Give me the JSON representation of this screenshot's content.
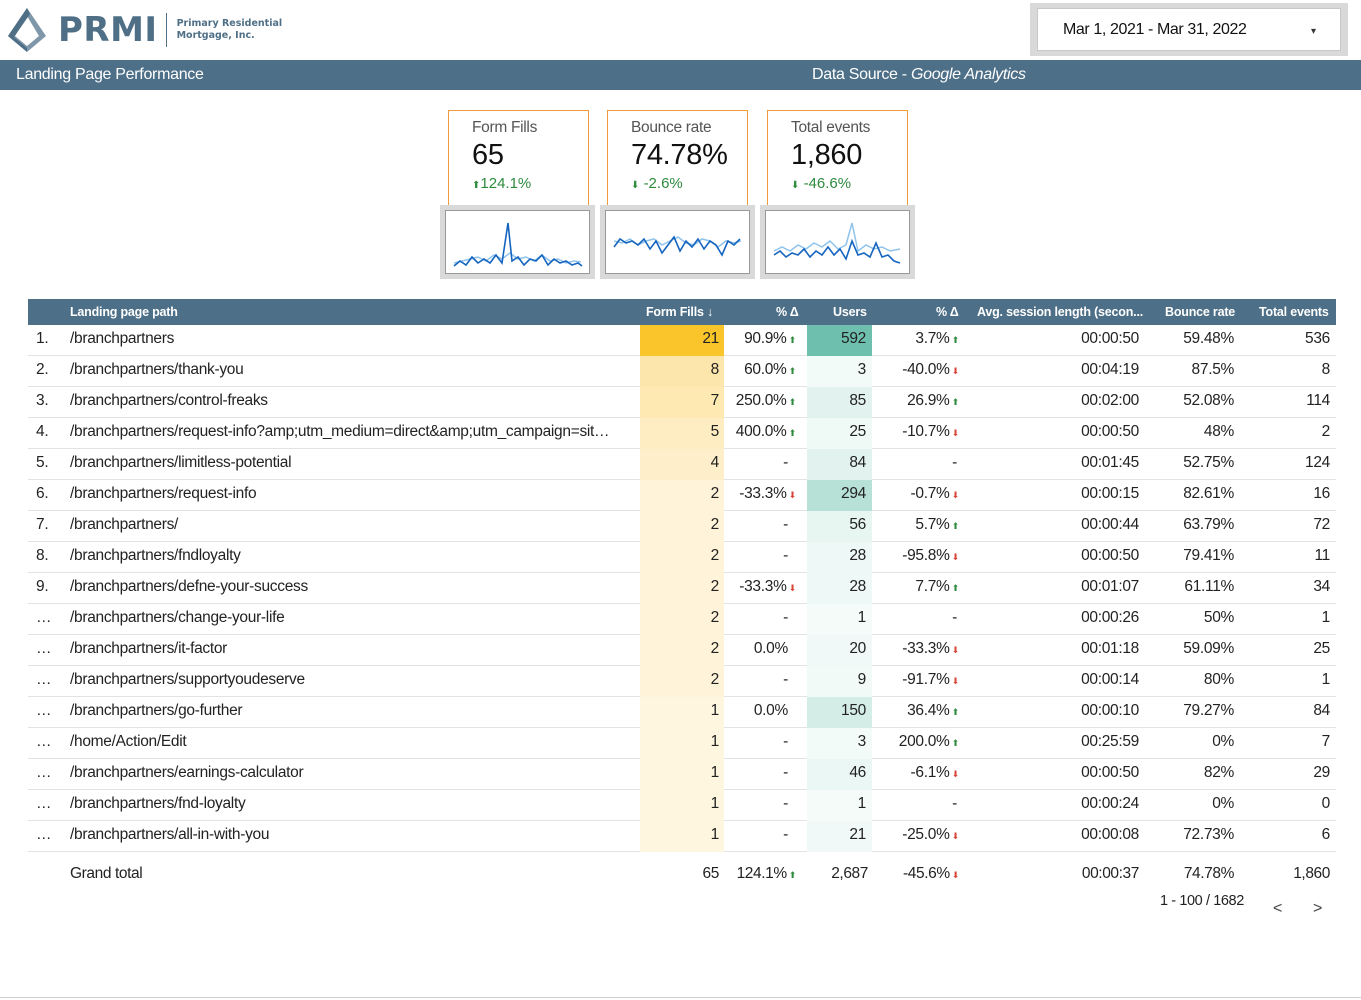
{
  "brand": {
    "name": "PRMI",
    "subtitle_line1": "Primary Residential",
    "subtitle_line2": "Mortgage, Inc."
  },
  "date_range": {
    "value": "Mar 1, 2021 - Mar 31, 2022",
    "arrow": "▾"
  },
  "header": {
    "title": "Landing Page Performance",
    "source_prefix": "Data Source - ",
    "source_name": "Google Analytics"
  },
  "kpis": [
    {
      "label": "Form Fills",
      "value": "65",
      "delta_arrow": "⬆",
      "delta": "124.1%"
    },
    {
      "label": "Bounce rate",
      "value": "74.78%",
      "delta_arrow": "⬇",
      "delta": "-2.6%"
    },
    {
      "label": "Total events",
      "value": "1,860",
      "delta_arrow": "⬇",
      "delta": "-46.6%"
    }
  ],
  "colors": {
    "header_bg": "#4d6f87",
    "kpi_border": "#f09a3e",
    "positive": "#2e8b3e",
    "negative": "#d9473a",
    "heat_orange_max": "#f9c52b",
    "heat_teal_max": "#6fbfae"
  },
  "table": {
    "columns": [
      "Landing page path",
      "Form Fills ↓",
      "% Δ",
      "Users",
      "% Δ",
      "Avg. session length (secon...",
      "Bounce rate",
      "Total events"
    ],
    "rows": [
      {
        "idx": "1.",
        "path": "/branchpartners",
        "fills": "21",
        "fills_d": "90.9%",
        "fills_dir": "up",
        "users": "592",
        "users_d": "3.7%",
        "users_dir": "up",
        "session": "00:00:50",
        "bounce": "59.48%",
        "events": "536"
      },
      {
        "idx": "2.",
        "path": "/branchpartners/thank-you",
        "fills": "8",
        "fills_d": "60.0%",
        "fills_dir": "up",
        "users": "3",
        "users_d": "-40.0%",
        "users_dir": "down",
        "session": "00:04:19",
        "bounce": "87.5%",
        "events": "8"
      },
      {
        "idx": "3.",
        "path": "/branchpartners/control-freaks",
        "fills": "7",
        "fills_d": "250.0%",
        "fills_dir": "up",
        "users": "85",
        "users_d": "26.9%",
        "users_dir": "up",
        "session": "00:02:00",
        "bounce": "52.08%",
        "events": "114"
      },
      {
        "idx": "4.",
        "path": "/branchpartners/request-info?amp;utm_medium=direct&amp;utm_campaign=sit…",
        "fills": "5",
        "fills_d": "400.0%",
        "fills_dir": "up",
        "users": "25",
        "users_d": "-10.7%",
        "users_dir": "down",
        "session": "00:00:50",
        "bounce": "48%",
        "events": "2"
      },
      {
        "idx": "5.",
        "path": "/branchpartners/limitless-potential",
        "fills": "4",
        "fills_d": "-",
        "fills_dir": "",
        "users": "84",
        "users_d": "-",
        "users_dir": "",
        "session": "00:01:45",
        "bounce": "52.75%",
        "events": "124"
      },
      {
        "idx": "6.",
        "path": "/branchpartners/request-info",
        "fills": "2",
        "fills_d": "-33.3%",
        "fills_dir": "down",
        "users": "294",
        "users_d": "-0.7%",
        "users_dir": "down",
        "session": "00:00:15",
        "bounce": "82.61%",
        "events": "16"
      },
      {
        "idx": "7.",
        "path": "/branchpartners/",
        "fills": "2",
        "fills_d": "-",
        "fills_dir": "",
        "users": "56",
        "users_d": "5.7%",
        "users_dir": "up",
        "session": "00:00:44",
        "bounce": "63.79%",
        "events": "72"
      },
      {
        "idx": "8.",
        "path": "/branchpartners/fndloyalty",
        "fills": "2",
        "fills_d": "-",
        "fills_dir": "",
        "users": "28",
        "users_d": "-95.8%",
        "users_dir": "down",
        "session": "00:00:50",
        "bounce": "79.41%",
        "events": "11"
      },
      {
        "idx": "9.",
        "path": "/branchpartners/defne-your-success",
        "fills": "2",
        "fills_d": "-33.3%",
        "fills_dir": "down",
        "users": "28",
        "users_d": "7.7%",
        "users_dir": "up",
        "session": "00:01:07",
        "bounce": "61.11%",
        "events": "34"
      },
      {
        "idx": "…",
        "path": "/branchpartners/change-your-life",
        "fills": "2",
        "fills_d": "-",
        "fills_dir": "",
        "users": "1",
        "users_d": "-",
        "users_dir": "",
        "session": "00:00:26",
        "bounce": "50%",
        "events": "1"
      },
      {
        "idx": "…",
        "path": "/branchpartners/it-factor",
        "fills": "2",
        "fills_d": "0.0%",
        "fills_dir": "",
        "users": "20",
        "users_d": "-33.3%",
        "users_dir": "down",
        "session": "00:01:18",
        "bounce": "59.09%",
        "events": "25"
      },
      {
        "idx": "…",
        "path": "/branchpartners/supportyoudeserve",
        "fills": "2",
        "fills_d": "-",
        "fills_dir": "",
        "users": "9",
        "users_d": "-91.7%",
        "users_dir": "down",
        "session": "00:00:14",
        "bounce": "80%",
        "events": "1"
      },
      {
        "idx": "…",
        "path": "/branchpartners/go-further",
        "fills": "1",
        "fills_d": "0.0%",
        "fills_dir": "",
        "users": "150",
        "users_d": "36.4%",
        "users_dir": "up",
        "session": "00:00:10",
        "bounce": "79.27%",
        "events": "84"
      },
      {
        "idx": "…",
        "path": "/home/Action/Edit",
        "fills": "1",
        "fills_d": "-",
        "fills_dir": "",
        "users": "3",
        "users_d": "200.0%",
        "users_dir": "up",
        "session": "00:25:59",
        "bounce": "0%",
        "events": "7"
      },
      {
        "idx": "…",
        "path": "/branchpartners/earnings-calculator",
        "fills": "1",
        "fills_d": "-",
        "fills_dir": "",
        "users": "46",
        "users_d": "-6.1%",
        "users_dir": "down",
        "session": "00:00:50",
        "bounce": "82%",
        "events": "29"
      },
      {
        "idx": "…",
        "path": "/branchpartners/fnd-loyalty",
        "fills": "1",
        "fills_d": "-",
        "fills_dir": "",
        "users": "1",
        "users_d": "-",
        "users_dir": "",
        "session": "00:00:24",
        "bounce": "0%",
        "events": "0"
      },
      {
        "idx": "…",
        "path": "/branchpartners/all-in-with-you",
        "fills": "1",
        "fills_d": "-",
        "fills_dir": "",
        "users": "21",
        "users_d": "-25.0%",
        "users_dir": "down",
        "session": "00:00:08",
        "bounce": "72.73%",
        "events": "6"
      }
    ],
    "total": {
      "label": "Grand total",
      "fills": "65",
      "fills_d": "124.1%",
      "fills_dir": "up",
      "users": "2,687",
      "users_d": "-45.6%",
      "users_dir": "down",
      "session": "00:00:37",
      "bounce": "74.78%",
      "events": "1,860"
    }
  },
  "pagination": {
    "text": "1 - 100 / 1682",
    "prev": "<",
    "next": ">"
  }
}
